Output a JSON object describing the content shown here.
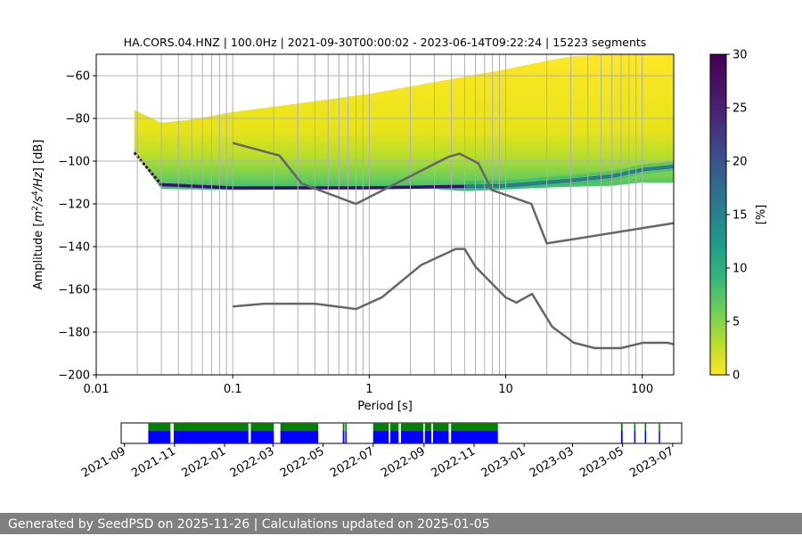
{
  "chart_data": [
    {
      "type": "heatmap",
      "title": "HA.CORS.04.HNZ | 100.0Hz | 2021-09-30T00:00:02 - 2023-06-14T09:22:24 | 15223 segments",
      "xlabel": "Period [s]",
      "ylabel_parts": [
        "Amplitude [",
        "m",
        "2",
        "/",
        "s",
        "4",
        "/",
        "Hz",
        "] [dB]"
      ],
      "x_scale": "log",
      "xlim": [
        0.01,
        170
      ],
      "ylim": [
        -200,
        -50
      ],
      "x_major_ticks": [
        0.01,
        0.1,
        1,
        10,
        100
      ],
      "x_tick_labels": [
        "0.01",
        "0.1",
        "1",
        "10",
        "100"
      ],
      "y_ticks": [
        -200,
        -180,
        -160,
        -140,
        -120,
        -100,
        -80,
        -60
      ],
      "y_tick_labels": [
        "−200",
        "−180",
        "−160",
        "−140",
        "−120",
        "−100",
        "−80",
        "−60"
      ],
      "grid_period_lines": [
        0.02,
        0.03,
        0.04,
        0.05,
        0.06,
        0.07,
        0.08,
        0.09,
        0.1,
        0.2,
        0.3,
        0.4,
        0.5,
        0.6,
        0.7,
        0.8,
        0.9,
        1,
        2,
        3,
        4,
        5,
        6,
        7,
        8,
        9,
        10,
        20,
        30,
        40,
        50,
        60,
        70,
        80,
        90,
        100
      ],
      "grid": true,
      "colorbar": {
        "label": "[%]",
        "range": [
          0,
          30
        ],
        "ticks": [
          0,
          5,
          10,
          15,
          20,
          25,
          30
        ],
        "tick_labels": [
          "0",
          "5",
          "10",
          "15",
          "20",
          "25",
          "30"
        ],
        "colormap": "viridis_r"
      },
      "noise_models": [
        {
          "name": "high-noise-model",
          "points": [
            [
              0.1,
              -91.5
            ],
            [
              0.22,
              -97.4
            ],
            [
              0.32,
              -110.5
            ],
            [
              0.8,
              -120
            ],
            [
              3.8,
              -98
            ],
            [
              4.6,
              -96.5
            ],
            [
              6.3,
              -101
            ],
            [
              7.9,
              -113.5
            ],
            [
              15.4,
              -120
            ],
            [
              20,
              -138.5
            ],
            [
              170,
              -129
            ]
          ]
        },
        {
          "name": "low-noise-model",
          "points": [
            [
              0.1,
              -168
            ],
            [
              0.17,
              -166.7
            ],
            [
              0.4,
              -166.7
            ],
            [
              0.8,
              -169.2
            ],
            [
              1.24,
              -163.7
            ],
            [
              2.4,
              -148.6
            ],
            [
              4.3,
              -141.1
            ],
            [
              5,
              -141.1
            ],
            [
              6,
              -149.4
            ],
            [
              10,
              -163.8
            ],
            [
              12,
              -166.2
            ],
            [
              15.6,
              -162.1
            ],
            [
              21.9,
              -177.5
            ],
            [
              31.6,
              -185
            ],
            [
              45,
              -187.5
            ],
            [
              70,
              -187.5
            ],
            [
              101,
              -185
            ],
            [
              154,
              -185
            ],
            [
              170,
              -185.7
            ]
          ]
        }
      ],
      "ppsd_band": {
        "start_period": 0.019,
        "end_period": 170,
        "mode_db": [
          [
            0.019,
            -96
          ],
          [
            0.03,
            -111
          ],
          [
            0.1,
            -112.5
          ],
          [
            1,
            -112.5
          ],
          [
            3,
            -112
          ],
          [
            10,
            -111.5
          ],
          [
            30,
            -109
          ],
          [
            60,
            -107
          ],
          [
            100,
            -104
          ],
          [
            170,
            -102.5
          ]
        ],
        "upper_db": [
          [
            0.019,
            -76
          ],
          [
            0.03,
            -82
          ],
          [
            0.05,
            -80.5
          ],
          [
            0.1,
            -77
          ],
          [
            0.3,
            -73
          ],
          [
            1,
            -68.5
          ],
          [
            3,
            -63
          ],
          [
            10,
            -57
          ],
          [
            20,
            -53
          ],
          [
            30,
            -51
          ],
          [
            60,
            -50
          ],
          [
            170,
            -50
          ]
        ],
        "lower_db": [
          [
            0.019,
            -96
          ],
          [
            0.03,
            -113
          ],
          [
            0.1,
            -113.5
          ],
          [
            1,
            -113
          ],
          [
            3,
            -113
          ],
          [
            5,
            -114
          ],
          [
            10,
            -113
          ],
          [
            30,
            -112
          ],
          [
            60,
            -111.5
          ],
          [
            100,
            -110
          ],
          [
            170,
            -110
          ]
        ]
      }
    },
    {
      "type": "timeline",
      "x_tick_labels": [
        "2021-09",
        "2021-11",
        "2022-01",
        "2022-03",
        "2022-05",
        "2022-07",
        "2022-09",
        "2022-11",
        "2023-01",
        "2023-03",
        "2023-05",
        "2023-07"
      ],
      "x_ticks": [
        "2021-09-01",
        "2021-11-01",
        "2022-01-01",
        "2022-03-01",
        "2022-05-01",
        "2022-07-01",
        "2022-09-01",
        "2022-11-01",
        "2023-01-01",
        "2023-03-01",
        "2023-05-01",
        "2023-07-01"
      ],
      "xlim": [
        "2021-08-28",
        "2023-07-12"
      ],
      "data_coverage": [
        [
          "2021-09-30",
          "2021-10-27"
        ],
        [
          "2021-10-31",
          "2022-01-30"
        ],
        [
          "2022-02-02",
          "2022-03-02"
        ],
        [
          "2022-03-10",
          "2022-04-25"
        ],
        [
          "2022-05-25",
          "2022-05-27"
        ],
        [
          "2022-05-28",
          "2022-05-29"
        ],
        [
          "2022-07-01",
          "2022-07-20"
        ],
        [
          "2022-07-22",
          "2022-08-01"
        ],
        [
          "2022-08-04",
          "2022-08-31"
        ],
        [
          "2022-09-02",
          "2022-09-10"
        ],
        [
          "2022-09-12",
          "2022-10-01"
        ],
        [
          "2022-10-04",
          "2022-11-30"
        ],
        [
          "2023-04-29",
          "2023-05-01"
        ],
        [
          "2023-05-15",
          "2023-05-16"
        ],
        [
          "2023-05-28",
          "2023-05-29"
        ],
        [
          "2023-06-14",
          "2023-06-14"
        ]
      ],
      "colors": {
        "used": "#0000ff",
        "available": "#008000"
      }
    }
  ],
  "footer": {
    "text": "Generated by SeedPSD on 2025-11-26 | Calculations updated on 2025-01-05"
  }
}
